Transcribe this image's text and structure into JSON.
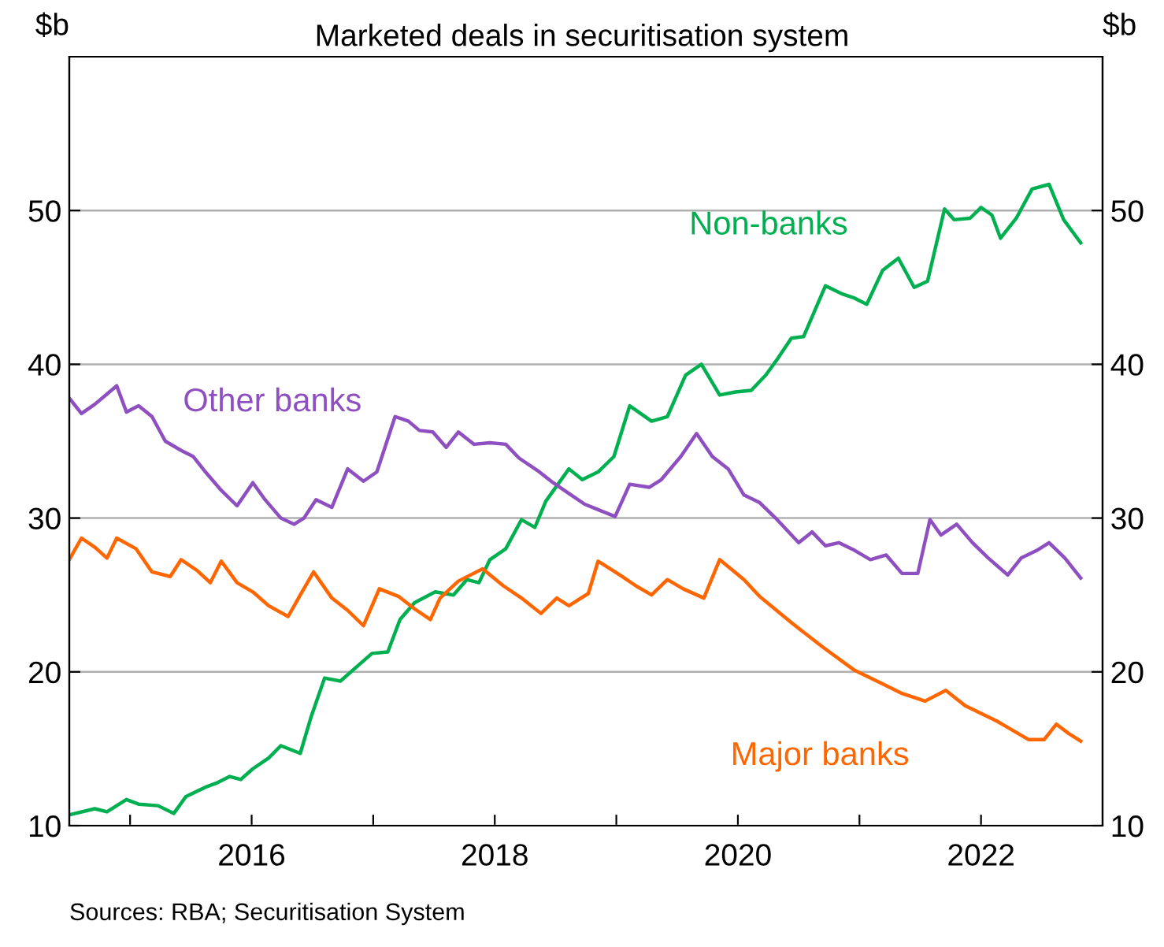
{
  "chart_data": {
    "type": "line",
    "title": "Marketed deals in securitisation system",
    "ylabel": "$b",
    "y2label": "$b",
    "xlim": [
      2014.5,
      2023.0
    ],
    "xticks": [
      {
        "value": 2015,
        "label": null
      },
      {
        "value": 2016,
        "label": "2016"
      },
      {
        "value": 2017,
        "label": null
      },
      {
        "value": 2018,
        "label": "2018"
      },
      {
        "value": 2019,
        "label": null
      },
      {
        "value": 2020,
        "label": "2020"
      },
      {
        "value": 2021,
        "label": null
      },
      {
        "value": 2022,
        "label": "2022"
      }
    ],
    "ylim": [
      10,
      60
    ],
    "yticks": [
      10,
      20,
      30,
      40,
      50
    ],
    "y2lim": [
      10,
      60
    ],
    "y2ticks": [
      10,
      20,
      30,
      40,
      50
    ],
    "grid": "y",
    "legend": false,
    "marker": "none",
    "line_style": "solid",
    "annotations": [
      "Sources: RBA; Securitisation System"
    ],
    "series": [
      {
        "name": "Non-banks",
        "color": "#00b050",
        "x": [
          2014.5,
          2014.71,
          2014.81,
          2014.97,
          2015.07,
          2015.23,
          2015.36,
          2015.46,
          2015.62,
          2015.72,
          2015.82,
          2015.91,
          2016.01,
          2016.14,
          2016.24,
          2016.4,
          2016.49,
          2016.6,
          2016.73,
          2016.86,
          2016.99,
          2017.12,
          2017.22,
          2017.34,
          2017.51,
          2017.66,
          2017.77,
          2017.87,
          2017.96,
          2018.09,
          2018.22,
          2018.33,
          2018.42,
          2018.61,
          2018.72,
          2018.85,
          2018.98,
          2019.11,
          2019.29,
          2019.42,
          2019.57,
          2019.7,
          2019.85,
          2019.98,
          2020.11,
          2020.23,
          2020.33,
          2020.44,
          2020.54,
          2020.72,
          2020.85,
          2020.96,
          2021.06,
          2021.19,
          2021.32,
          2021.45,
          2021.56,
          2021.7,
          2021.78,
          2021.91,
          2022.0,
          2022.09,
          2022.16,
          2022.29,
          2022.42,
          2022.56,
          2022.68,
          2022.82
        ],
        "values": [
          10.7,
          11.1,
          10.9,
          11.7,
          11.4,
          11.3,
          10.8,
          11.9,
          12.5,
          12.8,
          13.2,
          13.0,
          13.7,
          14.4,
          15.2,
          14.7,
          17.1,
          19.6,
          19.4,
          20.3,
          21.2,
          21.3,
          23.4,
          24.5,
          25.2,
          25.0,
          26.0,
          25.8,
          27.3,
          28.0,
          29.9,
          29.4,
          31.1,
          33.2,
          32.5,
          33.0,
          34.0,
          37.3,
          36.3,
          36.6,
          39.3,
          40.0,
          38.0,
          38.2,
          38.3,
          39.3,
          40.4,
          41.7,
          41.8,
          45.1,
          44.6,
          44.3,
          43.9,
          46.1,
          46.9,
          45.0,
          45.4,
          50.1,
          49.4,
          49.5,
          50.2,
          49.7,
          48.2,
          49.5,
          51.4,
          51.7,
          49.4,
          47.9
        ]
      },
      {
        "name": "Other banks",
        "color": "#8e4fc1",
        "x": [
          2014.5,
          2014.6,
          2014.71,
          2014.89,
          2014.97,
          2015.07,
          2015.18,
          2015.29,
          2015.42,
          2015.52,
          2015.62,
          2015.75,
          2015.88,
          2016.01,
          2016.11,
          2016.24,
          2016.35,
          2016.43,
          2016.53,
          2016.66,
          2016.79,
          2016.92,
          2017.03,
          2017.18,
          2017.29,
          2017.38,
          2017.49,
          2017.6,
          2017.7,
          2017.83,
          2017.96,
          2018.09,
          2018.2,
          2018.35,
          2018.48,
          2018.61,
          2018.74,
          2018.99,
          2019.11,
          2019.27,
          2019.37,
          2019.53,
          2019.66,
          2019.79,
          2019.92,
          2020.05,
          2020.18,
          2020.31,
          2020.5,
          2020.61,
          2020.72,
          2020.83,
          2020.96,
          2021.09,
          2021.22,
          2021.35,
          2021.48,
          2021.58,
          2021.67,
          2021.8,
          2021.93,
          2022.06,
          2022.22,
          2022.33,
          2022.46,
          2022.56,
          2022.69,
          2022.82
        ],
        "values": [
          37.8,
          36.8,
          37.4,
          38.6,
          36.9,
          37.3,
          36.6,
          35.0,
          34.4,
          34.0,
          33.0,
          31.8,
          30.8,
          32.3,
          31.2,
          30.0,
          29.6,
          30.0,
          31.2,
          30.7,
          33.2,
          32.4,
          33.0,
          36.6,
          36.3,
          35.7,
          35.6,
          34.6,
          35.6,
          34.8,
          34.9,
          34.8,
          33.9,
          33.1,
          32.3,
          31.6,
          30.9,
          30.1,
          32.2,
          32.0,
          32.5,
          34.0,
          35.5,
          34.0,
          33.2,
          31.5,
          31.0,
          30.0,
          28.4,
          29.1,
          28.2,
          28.4,
          27.9,
          27.3,
          27.6,
          26.4,
          26.4,
          29.9,
          28.9,
          29.6,
          28.4,
          27.4,
          26.3,
          27.4,
          27.9,
          28.4,
          27.4,
          26.1
        ]
      },
      {
        "name": "Major banks",
        "color": "#ff6600",
        "x": [
          2014.5,
          2014.6,
          2014.71,
          2014.81,
          2014.89,
          2015.05,
          2015.18,
          2015.33,
          2015.42,
          2015.55,
          2015.66,
          2015.75,
          2015.88,
          2016.01,
          2016.14,
          2016.3,
          2016.4,
          2016.51,
          2016.66,
          2016.79,
          2016.92,
          2017.05,
          2017.21,
          2017.34,
          2017.47,
          2017.55,
          2017.7,
          2017.9,
          2018.07,
          2018.22,
          2018.38,
          2018.51,
          2018.61,
          2018.77,
          2018.85,
          2019.03,
          2019.16,
          2019.29,
          2019.42,
          2019.55,
          2019.72,
          2019.85,
          2020.05,
          2020.18,
          2020.44,
          2020.7,
          2020.96,
          2021.22,
          2021.35,
          2021.54,
          2021.71,
          2021.87,
          2022.13,
          2022.39,
          2022.52,
          2022.62,
          2022.72,
          2022.82
        ],
        "values": [
          27.3,
          28.7,
          28.1,
          27.4,
          28.7,
          28.0,
          26.5,
          26.2,
          27.3,
          26.6,
          25.8,
          27.2,
          25.8,
          25.2,
          24.3,
          23.6,
          25.0,
          26.5,
          24.8,
          24.0,
          23.0,
          25.4,
          24.9,
          24.1,
          23.4,
          24.8,
          25.9,
          26.7,
          25.6,
          24.8,
          23.8,
          24.8,
          24.3,
          25.1,
          27.2,
          26.3,
          25.6,
          25.0,
          26.0,
          25.4,
          24.8,
          27.3,
          26.0,
          24.9,
          23.2,
          21.6,
          20.1,
          19.1,
          18.6,
          18.1,
          18.8,
          17.8,
          16.8,
          15.6,
          15.6,
          16.6,
          16.0,
          15.5
        ]
      }
    ]
  }
}
